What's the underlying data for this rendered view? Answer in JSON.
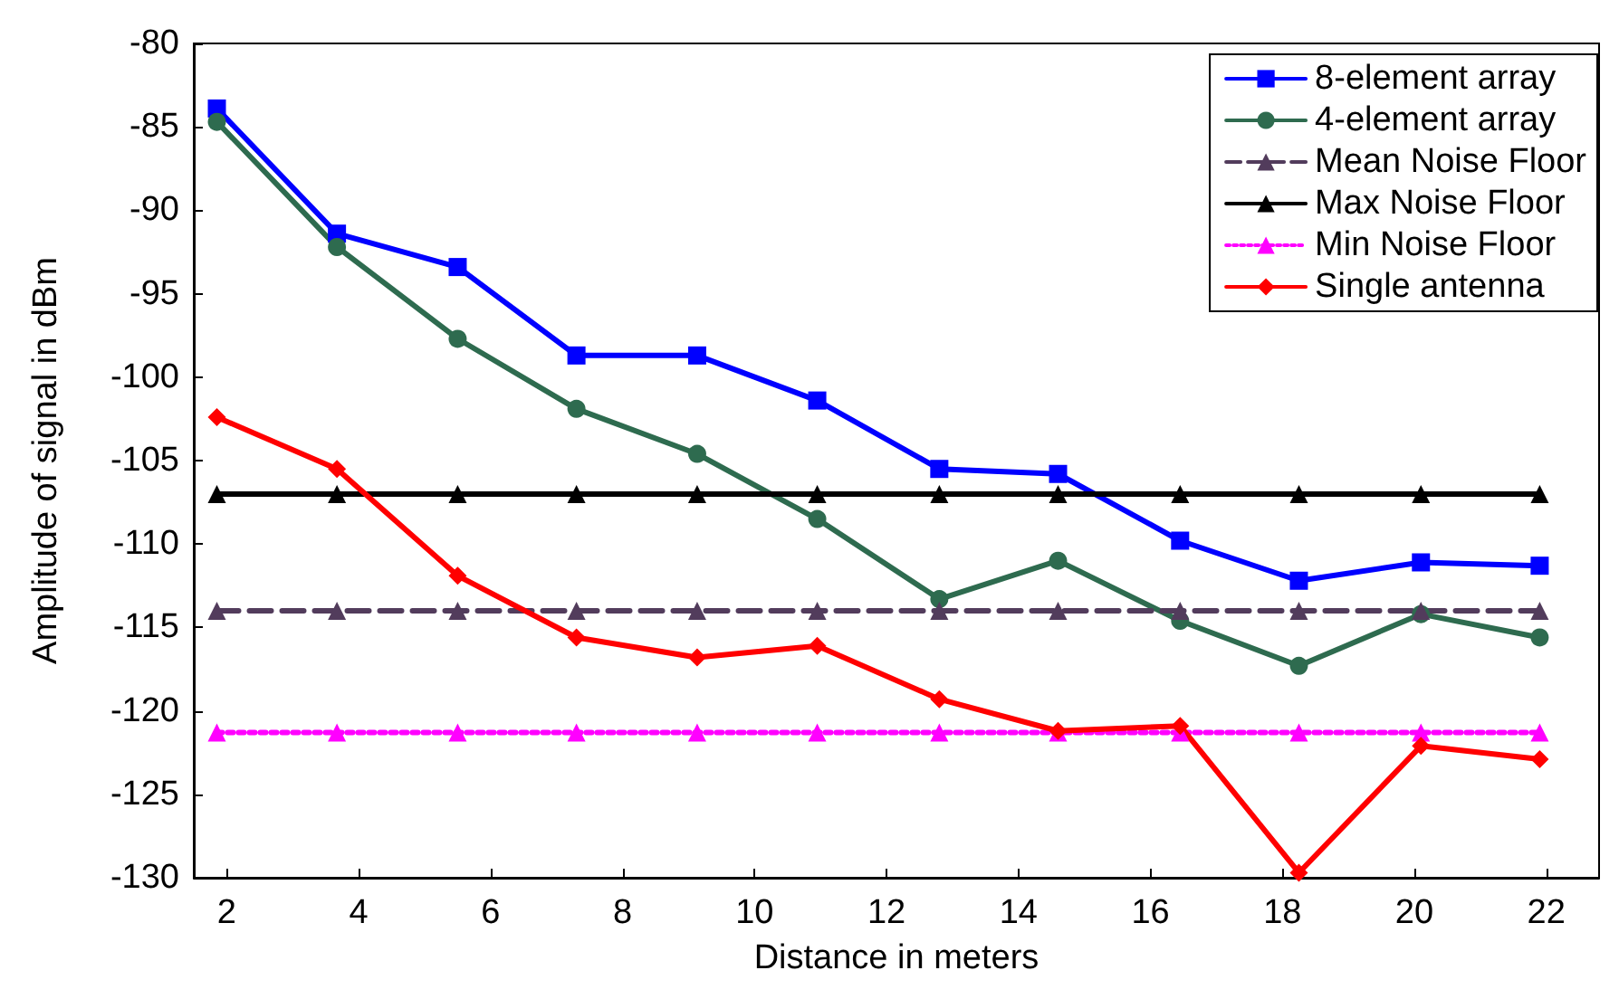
{
  "chart_data": {
    "type": "line",
    "xlabel": "Distance in meters",
    "ylabel": "Amplitude of signal in dBm",
    "x": [
      1.85,
      3.67,
      5.5,
      7.3,
      9.13,
      10.95,
      12.8,
      14.6,
      16.45,
      18.25,
      20.1,
      21.9
    ],
    "series": [
      {
        "name": "8-element array",
        "color": "#0000ff",
        "marker": "square",
        "line_style": "solid",
        "values": [
          -83.9,
          -91.4,
          -93.4,
          -98.7,
          -98.7,
          -101.4,
          -105.5,
          -105.8,
          -109.8,
          -112.2,
          -111.1,
          -111.3
        ]
      },
      {
        "name": "4-element array",
        "color": "#2e6b4f",
        "marker": "circle",
        "line_style": "solid",
        "values": [
          -84.7,
          -92.2,
          -97.7,
          -101.9,
          -104.6,
          -108.5,
          -113.3,
          -111.0,
          -114.6,
          -117.3,
          -114.2,
          -115.6
        ]
      },
      {
        "name": "Mean Noise Floor",
        "color": "#523c5c",
        "marker": "triangle",
        "line_style": "dashed",
        "values": [
          -114,
          -114,
          -114,
          -114,
          -114,
          -114,
          -114,
          -114,
          -114,
          -114,
          -114,
          -114
        ]
      },
      {
        "name": "Max Noise Floor",
        "color": "#000000",
        "marker": "triangle",
        "line_style": "solid",
        "values": [
          -107,
          -107,
          -107,
          -107,
          -107,
          -107,
          -107,
          -107,
          -107,
          -107,
          -107,
          -107
        ]
      },
      {
        "name": "Min Noise Floor",
        "color": "#ff00ff",
        "marker": "triangle",
        "line_style": "dotted",
        "values": [
          -121.3,
          -121.3,
          -121.3,
          -121.3,
          -121.3,
          -121.3,
          -121.3,
          -121.3,
          -121.3,
          -121.3,
          -121.3,
          -121.3
        ]
      },
      {
        "name": "Single antenna",
        "color": "#ff0000",
        "marker": "diamond",
        "line_style": "solid",
        "values": [
          -102.4,
          -105.5,
          -111.9,
          -115.6,
          -116.8,
          -116.1,
          -119.3,
          -121.2,
          -120.9,
          -129.7,
          -122.1,
          -122.9
        ]
      }
    ],
    "xlim": [
      1.5,
      22.8
    ],
    "xticks": [
      2,
      4,
      6,
      8,
      10,
      12,
      14,
      16,
      18,
      20,
      22
    ],
    "ylim": [
      -130,
      -80
    ],
    "yticks": [
      -130,
      -125,
      -120,
      -115,
      -110,
      -105,
      -100,
      -95,
      -90,
      -85,
      -80
    ],
    "grid": false,
    "legend": "top right"
  }
}
